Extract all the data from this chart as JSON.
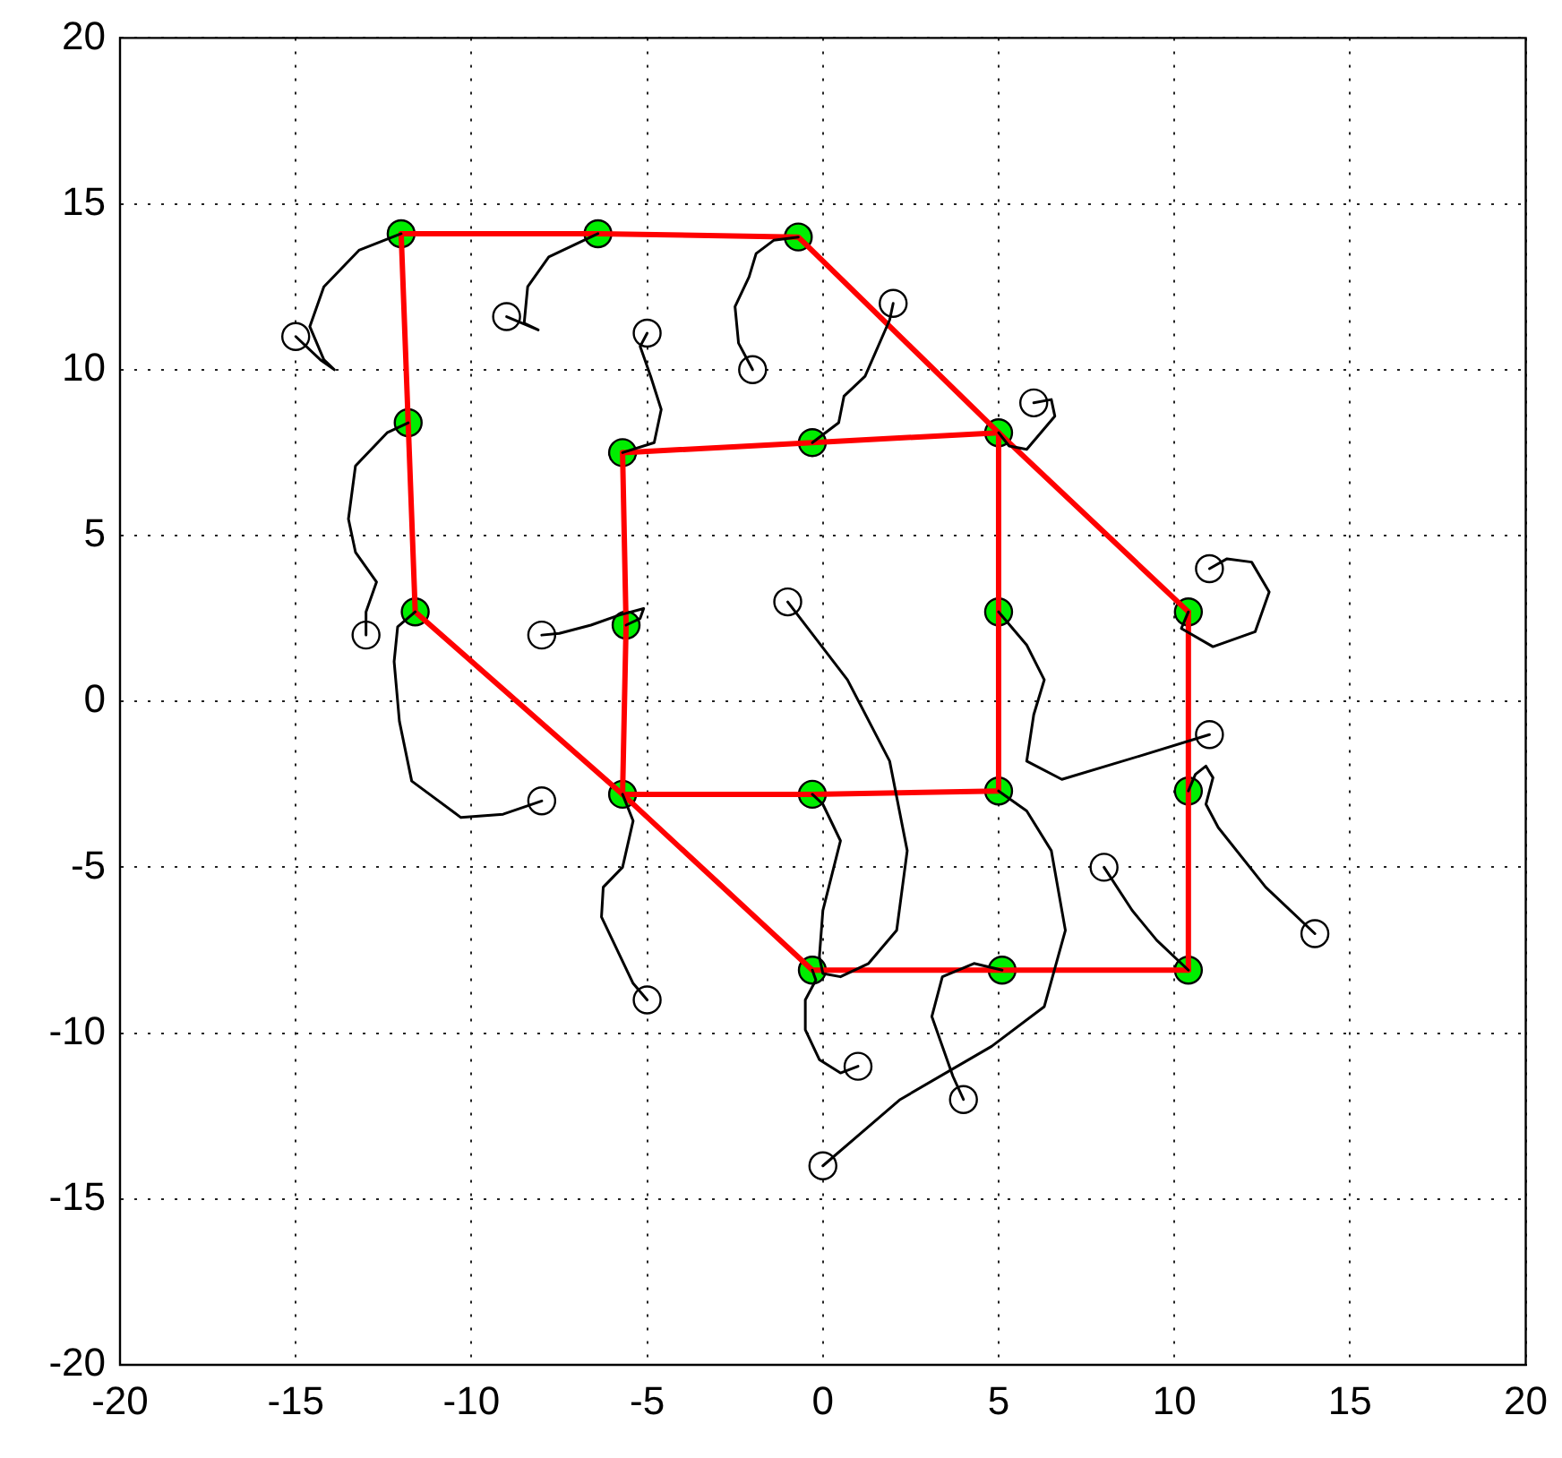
{
  "chart_data": {
    "type": "line",
    "xlim": [
      -20,
      20
    ],
    "ylim": [
      -20,
      20
    ],
    "xticks": [
      -20,
      -15,
      -10,
      -5,
      0,
      5,
      10,
      15,
      20
    ],
    "yticks": [
      -20,
      -15,
      -10,
      -5,
      0,
      5,
      10,
      15,
      20
    ],
    "grid": true,
    "legend": false,
    "series": [
      {
        "type": "line",
        "color": "#000000",
        "marker": "none",
        "line_style": "solid",
        "x": [
          -15,
          -14.3,
          -13.9,
          -14.2,
          -14.6,
          -14.2,
          -13.2,
          -12
        ],
        "values": [
          11,
          10.3,
          10,
          10.3,
          11.3,
          12.5,
          13.6,
          14.1
        ]
      },
      {
        "type": "line",
        "color": "#000000",
        "marker": "none",
        "line_style": "solid",
        "x": [
          -9,
          -8.1,
          -8.5,
          -8.4,
          -7.8,
          -6.4
        ],
        "values": [
          11.6,
          11.2,
          11.4,
          12.5,
          13.4,
          14.1
        ]
      },
      {
        "type": "line",
        "color": "#000000",
        "marker": "none",
        "line_style": "solid",
        "x": [
          -5,
          -5.2,
          -4.9,
          -4.6,
          -4.8,
          -5.7
        ],
        "values": [
          11.1,
          10.7,
          9.8,
          8.8,
          7.8,
          7.5
        ]
      },
      {
        "type": "line",
        "color": "#000000",
        "marker": "none",
        "line_style": "solid",
        "x": [
          -2,
          -2.4,
          -2.5,
          -2.1,
          -1.9,
          -1.4,
          -0.7
        ],
        "values": [
          10,
          10.8,
          11.9,
          12.8,
          13.5,
          13.9,
          14
        ]
      },
      {
        "type": "line",
        "color": "#000000",
        "marker": "none",
        "line_style": "solid",
        "x": [
          2,
          1.9,
          1.2,
          0.6,
          0.45,
          -0.3
        ],
        "values": [
          12,
          11.5,
          9.8,
          9.2,
          8.4,
          7.8
        ]
      },
      {
        "type": "line",
        "color": "#000000",
        "marker": "none",
        "line_style": "solid",
        "x": [
          6,
          6.5,
          6.6,
          6.2,
          5.8,
          5.3,
          5
        ],
        "values": [
          9,
          9.1,
          8.6,
          8.1,
          7.6,
          7.7,
          8.1
        ]
      },
      {
        "type": "line",
        "color": "#000000",
        "marker": "none",
        "line_style": "solid",
        "x": [
          11,
          11.5,
          12.2,
          12.7,
          12.3,
          11.1,
          10.2,
          10.4
        ],
        "values": [
          4,
          4.3,
          4.2,
          3.3,
          2.1,
          1.65,
          2.2,
          2.7
        ]
      },
      {
        "type": "line",
        "color": "#000000",
        "marker": "none",
        "line_style": "solid",
        "x": [
          -13,
          -13,
          -12.7,
          -13.3,
          -13.5,
          -13.3,
          -12.4,
          -11.8
        ],
        "values": [
          2,
          2.7,
          3.6,
          4.5,
          5.5,
          7.1,
          8.1,
          8.4
        ]
      },
      {
        "type": "line",
        "color": "#000000",
        "marker": "none",
        "line_style": "solid",
        "x": [
          -8,
          -7.5,
          -6.6,
          -5.8,
          -5.1,
          -5.2,
          -5.6
        ],
        "values": [
          2,
          2.05,
          2.3,
          2.6,
          2.8,
          2.5,
          2.3
        ]
      },
      {
        "type": "line",
        "color": "#000000",
        "marker": "none",
        "line_style": "solid",
        "x": [
          -1,
          0.7,
          1.9,
          2.4,
          2.1,
          1.3,
          0.5,
          0,
          -0.1,
          0,
          0.5,
          0,
          -0.3
        ],
        "values": [
          3,
          0.65,
          -1.8,
          -4.5,
          -6.9,
          -7.9,
          -8.3,
          -8.2,
          -7.7,
          -6.3,
          -4.2,
          -3.1,
          -2.8
        ]
      },
      {
        "type": "line",
        "color": "#000000",
        "marker": "none",
        "line_style": "solid",
        "x": [
          11,
          9,
          6.8,
          5.8,
          6,
          6.3,
          5.8,
          5
        ],
        "values": [
          -1,
          -1.65,
          -2.35,
          -1.8,
          -0.4,
          0.65,
          1.7,
          2.7
        ]
      },
      {
        "type": "line",
        "color": "#000000",
        "marker": "none",
        "line_style": "solid",
        "x": [
          -8,
          -9.1,
          -10.3,
          -11.7,
          -12.05,
          -12.2,
          -12.1,
          -11.6
        ],
        "values": [
          -3,
          -3.4,
          -3.5,
          -2.4,
          -0.6,
          1.2,
          2.25,
          2.7
        ]
      },
      {
        "type": "line",
        "color": "#000000",
        "marker": "none",
        "line_style": "solid",
        "x": [
          8,
          8.8,
          9.5,
          10.4
        ],
        "values": [
          -5,
          -6.3,
          -7.2,
          -8.1
        ]
      },
      {
        "type": "line",
        "color": "#000000",
        "marker": "none",
        "line_style": "solid",
        "x": [
          14,
          12.6,
          11.25,
          10.9,
          11.1,
          10.9,
          10.6,
          10.4
        ],
        "values": [
          -7,
          -5.6,
          -3.8,
          -3.1,
          -2.3,
          -1.95,
          -2.2,
          -2.7
        ]
      },
      {
        "type": "line",
        "color": "#000000",
        "marker": "none",
        "line_style": "solid",
        "x": [
          -5,
          -5.4,
          -6.3,
          -6.25,
          -5.7,
          -5.4,
          -5.7
        ],
        "values": [
          -9,
          -8.5,
          -6.5,
          -5.6,
          -5,
          -3.6,
          -2.8
        ]
      },
      {
        "type": "line",
        "color": "#000000",
        "marker": "none",
        "line_style": "solid",
        "x": [
          1,
          0.5,
          -0.1,
          -0.5,
          -0.5,
          -0.2,
          -0.3
        ],
        "values": [
          -11,
          -11.2,
          -10.8,
          -9.9,
          -9,
          -8.4,
          -8.1
        ]
      },
      {
        "type": "line",
        "color": "#000000",
        "marker": "none",
        "line_style": "solid",
        "x": [
          4,
          3.7,
          3.1,
          3.4,
          4.3,
          5.1
        ],
        "values": [
          -12,
          -11.3,
          -9.5,
          -8.3,
          -7.9,
          -8.1
        ]
      },
      {
        "type": "line",
        "color": "#000000",
        "marker": "none",
        "line_style": "solid",
        "x": [
          0,
          2.2,
          4.8,
          6.3,
          6.9,
          6.5,
          5.8,
          5
        ],
        "values": [
          -14,
          -12,
          -10.4,
          -9.2,
          -6.9,
          -4.5,
          -3.3,
          -2.7
        ]
      },
      {
        "type": "line",
        "color": "#ff0000",
        "marker": "none",
        "line_style": "solid",
        "x": [
          -12,
          -6.4,
          -0.7,
          5,
          10.4
        ],
        "values": [
          14.1,
          14.1,
          14,
          8.1,
          2.7
        ]
      },
      {
        "type": "line",
        "color": "#ff0000",
        "marker": "none",
        "line_style": "solid",
        "x": [
          10.4,
          10.4,
          10.4
        ],
        "values": [
          2.7,
          -2.7,
          -8.1
        ]
      },
      {
        "type": "line",
        "color": "#ff0000",
        "marker": "none",
        "line_style": "solid",
        "x": [
          -5.7,
          -0.3,
          5.1,
          10.4
        ],
        "values": [
          -2.8,
          -8.1,
          -8.1,
          -8.1
        ]
      },
      {
        "type": "line",
        "color": "#ff0000",
        "marker": "none",
        "line_style": "solid",
        "x": [
          -12,
          -11.8,
          -11.6,
          -5.7
        ],
        "values": [
          14.1,
          8.4,
          2.7,
          -2.8
        ]
      },
      {
        "type": "line",
        "color": "#ff0000",
        "marker": "none",
        "line_style": "solid",
        "x": [
          -5.7,
          -0.3,
          5
        ],
        "values": [
          7.5,
          7.8,
          8.1
        ]
      },
      {
        "type": "line",
        "color": "#ff0000",
        "marker": "none",
        "line_style": "solid",
        "x": [
          5,
          5,
          5
        ],
        "values": [
          8.1,
          2.7,
          -2.7
        ]
      },
      {
        "type": "line",
        "color": "#ff0000",
        "marker": "none",
        "line_style": "solid",
        "x": [
          -5.7,
          -0.3,
          5
        ],
        "values": [
          -2.8,
          -2.8,
          -2.7
        ]
      },
      {
        "type": "line",
        "color": "#ff0000",
        "marker": "none",
        "line_style": "solid",
        "x": [
          -5.7,
          -5.6,
          -5.7
        ],
        "values": [
          7.5,
          2.3,
          -2.8
        ]
      },
      {
        "type": "scatter",
        "color": "#ffffff",
        "marker": "circle",
        "x": [
          -15,
          -9,
          -5,
          -2,
          2,
          6,
          11,
          -13,
          -8,
          -1,
          11,
          -8,
          8,
          14,
          -5,
          1,
          4,
          0
        ],
        "values": [
          11,
          11.6,
          11.1,
          10,
          12,
          9,
          4,
          2,
          2,
          3,
          -1,
          -3,
          -5,
          -7,
          -9,
          -11,
          -12,
          -14
        ]
      },
      {
        "type": "scatter",
        "color": "#00ee00",
        "marker": "circle",
        "x": [
          -12,
          -6.4,
          -0.7,
          -11.8,
          -5.7,
          -0.3,
          5,
          -11.6,
          -5.6,
          5,
          10.4,
          -5.7,
          -0.3,
          5,
          10.4,
          -0.3,
          5.1,
          10.4
        ],
        "values": [
          14.1,
          14.1,
          14,
          8.4,
          7.5,
          7.8,
          8.1,
          2.7,
          2.3,
          2.7,
          2.7,
          -2.8,
          -2.8,
          -2.7,
          -2.7,
          -8.1,
          -8.1,
          -8.1
        ]
      }
    ]
  }
}
